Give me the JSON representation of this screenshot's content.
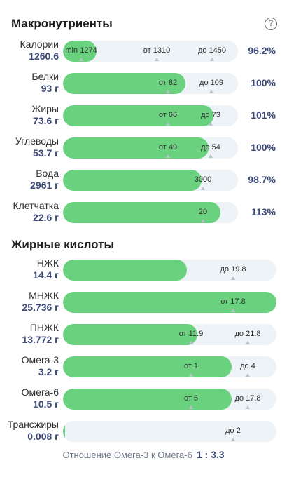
{
  "macros": {
    "title": "Макронутриенты",
    "help_icon": "question-circle-icon",
    "rows": [
      {
        "name": "Калории",
        "value": "1260.6",
        "percent": "96.2%",
        "fill": 0.19,
        "marks": [
          {
            "label": "min 1274"
          },
          {
            "label": "от 1310"
          },
          {
            "label": "до 1450"
          }
        ]
      },
      {
        "name": "Белки",
        "value": "93 г",
        "percent": "100%",
        "fill": 0.7,
        "marks": [
          {
            "label": "от 82"
          },
          {
            "label": "до 109"
          }
        ]
      },
      {
        "name": "Жиры",
        "value": "73.6 г",
        "percent": "101%",
        "fill": 0.86,
        "marks": [
          {
            "label": "от 66"
          },
          {
            "label": "до 73"
          }
        ]
      },
      {
        "name": "Углеводы",
        "value": "53.7 г",
        "percent": "100%",
        "fill": 0.83,
        "marks": [
          {
            "label": "от 49"
          },
          {
            "label": "до 54"
          }
        ]
      },
      {
        "name": "Вода",
        "value": "2961 г",
        "percent": "98.7%",
        "fill": 0.79,
        "marks": [
          {
            "label": "3000"
          }
        ]
      },
      {
        "name": "Клетчатка",
        "value": "22.6 г",
        "percent": "113%",
        "fill": 0.9,
        "marks": [
          {
            "label": "20"
          }
        ]
      }
    ]
  },
  "fats": {
    "title": "Жирные кислоты",
    "rows": [
      {
        "name": "НЖК",
        "value": "14.4 г",
        "fill": 0.58,
        "marks": [
          {
            "label": "до 19.8"
          }
        ]
      },
      {
        "name": "МНЖК",
        "value": "25.736 г",
        "fill": 1.0,
        "marks": [
          {
            "label": "от 17.8"
          }
        ]
      },
      {
        "name": "ПНЖК",
        "value": "13.772 г",
        "fill": 0.63,
        "marks": [
          {
            "label": "от 11.9"
          },
          {
            "label": "до 21.8"
          }
        ]
      },
      {
        "name": "Омега-3",
        "value": "3.2 г",
        "fill": 0.79,
        "marks": [
          {
            "label": "от 1"
          },
          {
            "label": "до 4"
          }
        ]
      },
      {
        "name": "Омега-6",
        "value": "10.5 г",
        "fill": 0.79,
        "marks": [
          {
            "label": "от 5"
          },
          {
            "label": "до 17.8"
          }
        ]
      },
      {
        "name": "Трансжиры",
        "value": "0.008 г",
        "fill": 0.0,
        "marks": [
          {
            "label": "до 2"
          }
        ]
      }
    ]
  },
  "ratio": {
    "label": "Отношение Омега-3 к Омега-6",
    "value": "1 : 3.3"
  },
  "colors": {
    "fill": "#6ad27f",
    "track": "#edf3f6",
    "value": "#3c4a78"
  }
}
